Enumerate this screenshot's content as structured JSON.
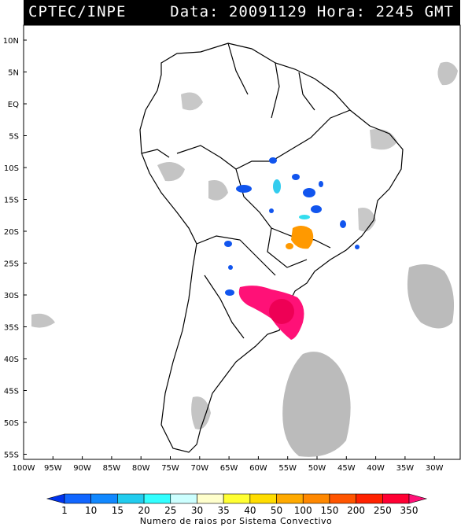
{
  "header": {
    "left": "CPTEC/INPE",
    "right": "Data: 20091129 Hora: 2245 GMT"
  },
  "axes": {
    "lat_labels": [
      "10N",
      "5N",
      "EQ",
      "5S",
      "10S",
      "15S",
      "20S",
      "25S",
      "30S",
      "35S",
      "40S",
      "45S",
      "50S",
      "55S"
    ],
    "lon_labels": [
      "100W",
      "95W",
      "90W",
      "85W",
      "80W",
      "75W",
      "70W",
      "65W",
      "60W",
      "55W",
      "50W",
      "45W",
      "40W",
      "35W",
      "30W"
    ]
  },
  "colorbar": {
    "labels": [
      "1",
      "10",
      "15",
      "20",
      "25",
      "30",
      "35",
      "40",
      "50",
      "100",
      "150",
      "200",
      "250",
      "350"
    ],
    "colors": [
      "#0033ee",
      "#1166ff",
      "#1188ff",
      "#22ccee",
      "#33ffff",
      "#ccffff",
      "#ffffcc",
      "#ffff33",
      "#ffdd00",
      "#ffaa00",
      "#ff8800",
      "#ff5500",
      "#ff2200",
      "#ff0033",
      "#ff1177"
    ],
    "caption": "Numero de raios por Sistema Convectivo"
  },
  "colors": {
    "land_gray": "#bbbbbb",
    "coast": "#000000",
    "cell_blue": "#1155ee",
    "cell_cyan": "#33ddee",
    "cell_orange": "#ff9900",
    "cell_pink": "#ff1177"
  }
}
